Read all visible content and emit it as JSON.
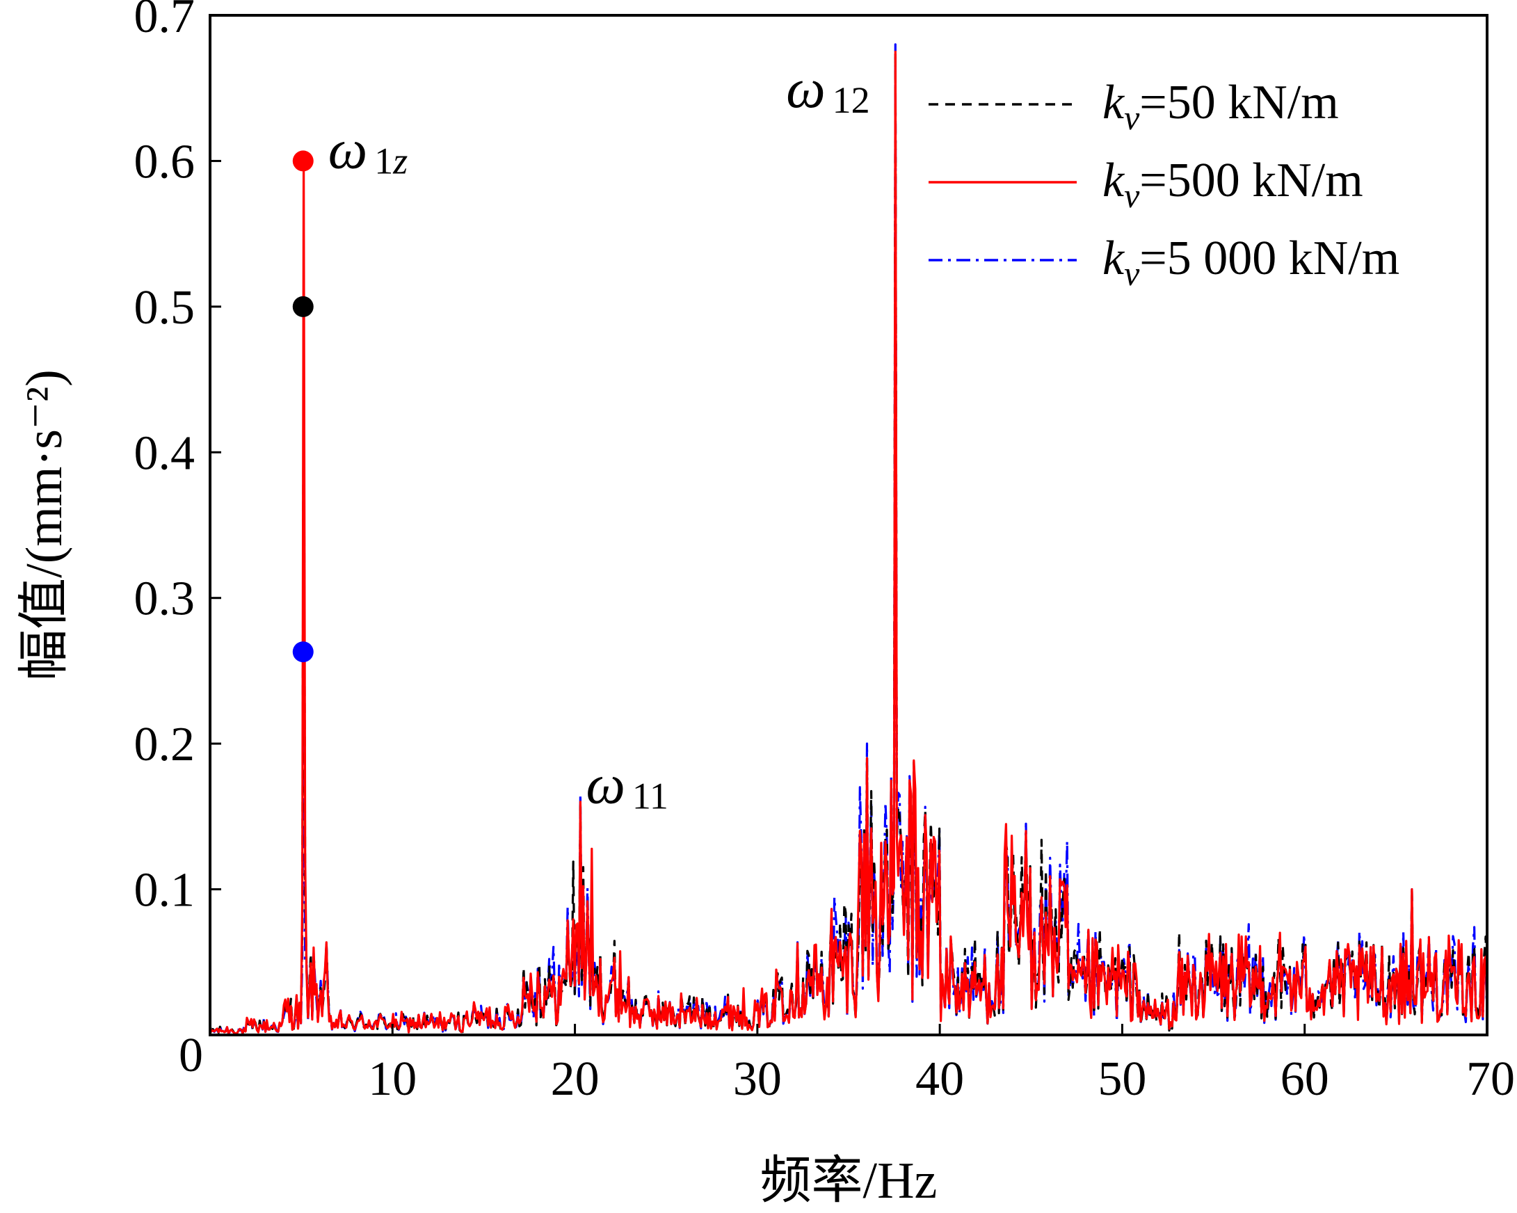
{
  "chart_data": {
    "type": "line",
    "title": "",
    "xlabel": "频率/Hz",
    "ylabel": "幅值/(mm·s⁻²)",
    "xlim": [
      0,
      70
    ],
    "ylim": [
      0,
      0.7
    ],
    "xticks": [
      0,
      10,
      20,
      30,
      40,
      50,
      60,
      70
    ],
    "xtick_labels": [
      "0",
      "10",
      "20",
      "30",
      "40",
      "50",
      "60",
      "70"
    ],
    "yticks": [
      0.1,
      0.2,
      0.3,
      0.4,
      0.5,
      0.6,
      0.7
    ],
    "ytick_labels": [
      "0.1",
      "0.2",
      "0.3",
      "0.4",
      "0.5",
      "0.6",
      "0.7"
    ],
    "legend_position": "top-right",
    "series": [
      {
        "name": "k_v=50 kN/m",
        "label_parts": [
          "k",
          "v",
          "=50 kN/m"
        ],
        "color": "#000000",
        "style": "dashed",
        "peaks": [
          [
            5.1,
            0.5
          ],
          [
            20.3,
            0.16
          ],
          [
            36.0,
            0.19
          ],
          [
            37.6,
            0.675
          ],
          [
            44.7,
            0.13
          ],
          [
            65.9,
            0.1
          ]
        ]
      },
      {
        "name": "k_v=500 kN/m",
        "label_parts": [
          "k",
          "v",
          "=500 kN/m"
        ],
        "color": "#ff0000",
        "style": "solid",
        "peaks": [
          [
            5.1,
            0.6
          ],
          [
            20.3,
            0.16
          ],
          [
            36.0,
            0.19
          ],
          [
            37.6,
            0.675
          ],
          [
            44.7,
            0.14
          ],
          [
            65.9,
            0.1
          ]
        ]
      },
      {
        "name": "k_v=5 000 kN/m",
        "label_parts": [
          "k",
          "v",
          "=5 000 kN/m"
        ],
        "color": "#0000ff",
        "style": "dashdot",
        "peaks": [
          [
            5.1,
            0.26
          ],
          [
            20.3,
            0.165
          ],
          [
            36.0,
            0.2
          ],
          [
            37.6,
            0.68
          ],
          [
            44.7,
            0.145
          ],
          [
            65.9,
            0.1
          ]
        ]
      }
    ],
    "markers": [
      {
        "x": 5.1,
        "y": 0.6,
        "color": "#ff0000"
      },
      {
        "x": 5.1,
        "y": 0.5,
        "color": "#000000"
      },
      {
        "x": 5.1,
        "y": 0.263,
        "color": "#0000ff"
      }
    ],
    "annotations": [
      {
        "symbol": "ω",
        "sub": "1z",
        "x": 5.1,
        "y": 0.6
      },
      {
        "symbol": "ω",
        "sub": "11",
        "x": 20.3,
        "y": 0.165
      },
      {
        "symbol": "ω",
        "sub": "12",
        "x": 37.6,
        "y": 0.68
      }
    ]
  }
}
